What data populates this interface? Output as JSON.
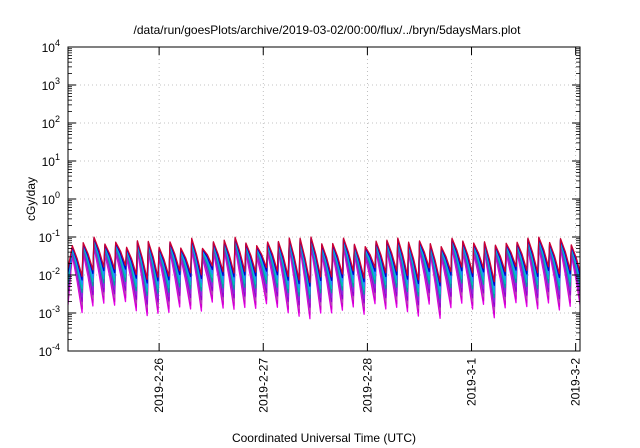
{
  "chart_data": {
    "type": "line",
    "title": "/data/run/goesPlots/archive/2019-03-02/00:00/flux/../bryn/5daysMars.plot",
    "xlabel": "Coordinated Universal Time (UTC)",
    "ylabel": "cGy/day",
    "y_scale": "log",
    "ylim": [
      0.0001,
      10000
    ],
    "xlim": [
      "2019-02-25T03:00",
      "2019-03-02T01:00"
    ],
    "grid": true,
    "legend": "none",
    "y_ticks": [
      {
        "value": 0.0001,
        "base": "10",
        "exp": "-4"
      },
      {
        "value": 0.001,
        "base": "10",
        "exp": "-3"
      },
      {
        "value": 0.01,
        "base": "10",
        "exp": "-2"
      },
      {
        "value": 0.1,
        "base": "10",
        "exp": "-1"
      },
      {
        "value": 1,
        "base": "10",
        "exp": "0"
      },
      {
        "value": 10,
        "base": "10",
        "exp": "1"
      },
      {
        "value": 100,
        "base": "10",
        "exp": "2"
      },
      {
        "value": 1000,
        "base": "10",
        "exp": "3"
      },
      {
        "value": 10000,
        "base": "10",
        "exp": "4"
      }
    ],
    "x_ticks": [
      {
        "value": "2019-02-26T00:00",
        "label": "2019-2-26"
      },
      {
        "value": "2019-02-27T00:00",
        "label": "2019-2-27"
      },
      {
        "value": "2019-02-28T00:00",
        "label": "2019-2-28"
      },
      {
        "value": "2019-03-01T00:00",
        "label": "2019-3-1"
      },
      {
        "value": "2019-03-02T00:00",
        "label": "2019-3-2"
      }
    ],
    "pattern": {
      "period_hours": 2.5,
      "first_peak": "2019-02-25T04:00",
      "peak_value_range": [
        0.05,
        0.1
      ],
      "trough_value_range": [
        0.0007,
        0.002
      ]
    },
    "series": [
      {
        "color": "#e600e6",
        "peak_factor": 0.55,
        "trough_factor": 1.0
      },
      {
        "color": "#cc00cc",
        "peak_factor": 0.6,
        "trough_factor": 1.25
      },
      {
        "color": "#b24db2",
        "peak_factor": 0.65,
        "trough_factor": 1.6
      },
      {
        "color": "#9400d3",
        "peak_factor": 0.7,
        "trough_factor": 2.0
      },
      {
        "color": "#8a2be2",
        "peak_factor": 0.75,
        "trough_factor": 2.6
      },
      {
        "color": "#00a0a0",
        "peak_factor": 0.8,
        "trough_factor": 3.4
      },
      {
        "color": "#00bfbf",
        "peak_factor": 0.85,
        "trough_factor": 4.4
      },
      {
        "color": "#1e90ff",
        "peak_factor": 0.9,
        "trough_factor": 5.6
      },
      {
        "color": "#0000cd",
        "peak_factor": 0.95,
        "trough_factor": 7.2
      },
      {
        "color": "#cc0033",
        "peak_factor": 1.0,
        "trough_factor": 9.0
      }
    ]
  }
}
